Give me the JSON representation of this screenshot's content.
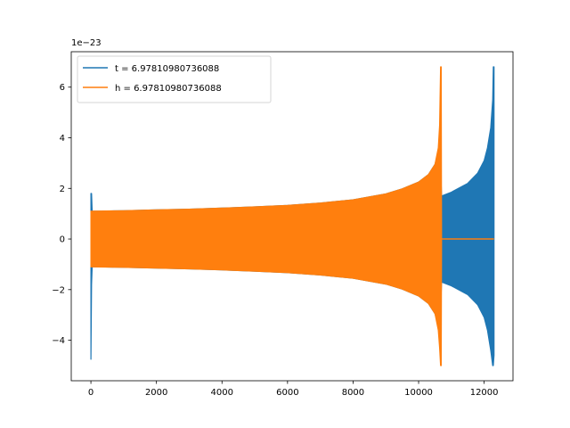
{
  "chart_data": {
    "type": "line",
    "title": "",
    "xlabel": "",
    "ylabel": "",
    "y_offset_text": "1e−23",
    "xlim": [
      -600,
      12880
    ],
    "ylim": [
      -5.6,
      7.4
    ],
    "xticks": [
      0,
      2000,
      4000,
      6000,
      8000,
      10000,
      12000
    ],
    "xtick_labels": [
      "0",
      "2000",
      "4000",
      "6000",
      "8000",
      "10000",
      "12000"
    ],
    "yticks": [
      -4,
      -2,
      0,
      2,
      4,
      6
    ],
    "ytick_labels": [
      "−4",
      "−2",
      "0",
      "2",
      "4",
      "6"
    ],
    "grid": false,
    "legend_position": "upper left",
    "series": [
      {
        "name": "t = 6.97810980736088",
        "color": "#1f77b4",
        "envelope_x": [
          0,
          20,
          40,
          60,
          300,
          1000,
          2000,
          3000,
          4000,
          5000,
          6000,
          7000,
          8000,
          9000,
          9500,
          10000,
          10300,
          10500,
          10650,
          10700,
          11000,
          11500,
          11800,
          12000,
          12100,
          12200,
          12260,
          12280,
          12300
        ],
        "envelope_upper": [
          1.8,
          1.8,
          1.1,
          1.1,
          1.1,
          1.12,
          1.15,
          1.18,
          1.22,
          1.27,
          1.33,
          1.42,
          1.55,
          1.78,
          1.98,
          2.25,
          2.55,
          2.95,
          3.6,
          1.7,
          1.85,
          2.2,
          2.6,
          3.1,
          3.6,
          4.4,
          5.5,
          6.8,
          6.8
        ],
        "envelope_lower": [
          -4.75,
          -1.8,
          -1.1,
          -1.1,
          -1.1,
          -1.12,
          -1.15,
          -1.18,
          -1.22,
          -1.27,
          -1.33,
          -1.42,
          -1.55,
          -1.78,
          -1.98,
          -2.25,
          -2.55,
          -2.95,
          -3.6,
          -1.7,
          -1.85,
          -2.2,
          -2.6,
          -3.1,
          -3.6,
          -4.4,
          -5.0,
          -5.0,
          -4.6
        ]
      },
      {
        "name": "h = 6.97810980736088",
        "color": "#ff7f0e",
        "envelope_x": [
          0,
          1000,
          2000,
          3000,
          4000,
          5000,
          6000,
          7000,
          8000,
          9000,
          9500,
          10000,
          10300,
          10500,
          10600,
          10640,
          10670,
          10690,
          10700
        ],
        "envelope_upper": [
          1.1,
          1.12,
          1.15,
          1.18,
          1.22,
          1.27,
          1.33,
          1.42,
          1.55,
          1.78,
          1.98,
          2.25,
          2.55,
          2.95,
          3.6,
          4.5,
          6.8,
          6.8,
          0
        ],
        "envelope_lower": [
          -1.1,
          -1.12,
          -1.15,
          -1.18,
          -1.22,
          -1.27,
          -1.33,
          -1.42,
          -1.55,
          -1.78,
          -1.98,
          -2.25,
          -2.55,
          -2.95,
          -3.6,
          -4.3,
          -5.0,
          -5.0,
          0
        ],
        "flat_segment": {
          "x": [
            10700,
            12300
          ],
          "y": 0
        }
      }
    ]
  }
}
